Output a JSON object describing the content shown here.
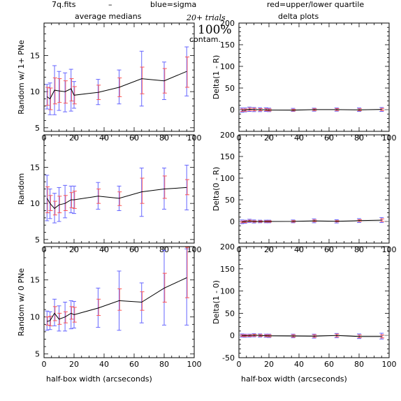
{
  "header": {
    "filename": "7q.fits",
    "dash": "–",
    "blue_label": "blue=sigma",
    "red_label": "red=upper/lower quartile",
    "trials": "20+ trials",
    "percent": "100%",
    "contam": "contam.",
    "blue_color": "#6666ff",
    "red_color": "#ff5555"
  },
  "columns": {
    "left_title": "average medians",
    "right_title": "delta plots"
  },
  "x_axis": {
    "label": "half-box width (arcseconds)",
    "range": [
      0,
      100
    ],
    "ticks": [
      0,
      20,
      40,
      60,
      80,
      100
    ]
  },
  "chart_data": [
    {
      "type": "line",
      "panel": "left-top",
      "ylabel": "Random w/ 1+ PNe",
      "xlim": [
        0,
        100
      ],
      "ylim": [
        4.5,
        19.5
      ],
      "yticks": [
        5,
        10,
        15
      ],
      "x": [
        2,
        4,
        7,
        10,
        14,
        18,
        20,
        36,
        50,
        65,
        80,
        95
      ],
      "y": [
        9.3,
        9.0,
        10.2,
        10.1,
        10.0,
        10.4,
        9.5,
        9.9,
        10.6,
        11.8,
        11.5,
        12.8
      ],
      "sigma_lo": [
        7.6,
        6.8,
        6.8,
        7.4,
        7.2,
        7.3,
        7.7,
        8.2,
        8.3,
        8.0,
        8.9,
        9.4
      ],
      "sigma_hi": [
        11.0,
        11.2,
        13.6,
        12.8,
        12.6,
        13.1,
        11.4,
        11.7,
        13.0,
        15.6,
        14.1,
        16.2
      ],
      "quart_lo": [
        8.1,
        7.5,
        8.3,
        8.5,
        8.4,
        8.7,
        8.3,
        8.9,
        9.3,
        9.7,
        9.8,
        10.6
      ],
      "quart_hi": [
        10.6,
        10.5,
        11.9,
        11.8,
        11.5,
        11.8,
        10.7,
        10.9,
        11.9,
        13.4,
        13.2,
        14.8
      ]
    },
    {
      "type": "line",
      "panel": "left-middle",
      "ylabel": "Random",
      "xlim": [
        0,
        100
      ],
      "ylim": [
        4.5,
        19.5
      ],
      "yticks": [
        5,
        10,
        15
      ],
      "x": [
        2,
        4,
        7,
        10,
        14,
        18,
        20,
        36,
        50,
        65,
        80,
        95
      ],
      "y": [
        10.7,
        10.0,
        9.3,
        9.8,
        10.0,
        10.5,
        10.5,
        11.0,
        10.7,
        11.6,
        12.0,
        12.2
      ],
      "sigma_lo": [
        7.6,
        7.9,
        7.3,
        7.5,
        8.0,
        8.7,
        8.6,
        9.2,
        9.0,
        8.2,
        9.2,
        9.1
      ],
      "sigma_hi": [
        13.9,
        12.0,
        11.4,
        12.2,
        12.5,
        12.4,
        12.4,
        12.9,
        12.4,
        14.9,
        14.9,
        15.3
      ],
      "quart_lo": [
        8.7,
        9.0,
        8.4,
        8.7,
        9.0,
        9.4,
        9.3,
        10.0,
        9.7,
        10.0,
        10.7,
        11.2
      ],
      "quart_hi": [
        12.3,
        11.1,
        10.3,
        11.0,
        11.1,
        11.5,
        11.7,
        12.0,
        11.6,
        13.5,
        13.8,
        13.3
      ]
    },
    {
      "type": "line",
      "panel": "left-bottom",
      "ylabel": "Random w/ 0 PNe",
      "xlim": [
        0,
        100
      ],
      "ylim": [
        4.5,
        19.5
      ],
      "yticks": [
        5,
        10,
        15
      ],
      "x": [
        2,
        4,
        7,
        10,
        14,
        18,
        20,
        36,
        50,
        65,
        80,
        95
      ],
      "y": [
        9.4,
        9.5,
        10.5,
        9.7,
        10.0,
        10.5,
        10.3,
        11.2,
        12.2,
        12.0,
        13.9,
        15.3
      ],
      "sigma_lo": [
        8.2,
        8.3,
        8.8,
        8.1,
        8.1,
        8.4,
        8.5,
        8.6,
        8.2,
        9.2,
        8.9,
        8.9
      ],
      "sigma_hi": [
        10.8,
        10.7,
        12.4,
        11.5,
        12.0,
        12.2,
        12.1,
        13.9,
        16.2,
        14.6,
        19.0,
        19.2
      ],
      "quart_lo": [
        8.9,
        8.8,
        9.5,
        9.0,
        9.2,
        9.7,
        9.3,
        10.2,
        10.9,
        10.9,
        12.0,
        12.6
      ],
      "quart_hi": [
        10.0,
        10.1,
        11.4,
        10.5,
        10.7,
        11.4,
        11.3,
        12.4,
        13.8,
        13.4,
        15.9,
        19.4
      ]
    },
    {
      "type": "line",
      "panel": "right-top",
      "ylabel": "Delta(1 - R)",
      "xlim": [
        0,
        100
      ],
      "ylim": [
        -50,
        200
      ],
      "yticks": [
        0,
        50,
        100,
        150,
        200
      ],
      "x": [
        2,
        4,
        7,
        10,
        14,
        18,
        20,
        36,
        50,
        65,
        80,
        95
      ],
      "y": [
        -1.4,
        -1.0,
        0.9,
        0.3,
        0,
        -0.1,
        -1.0,
        -1.1,
        0.1,
        0.2,
        -0.5,
        0.6
      ],
      "sigma_lo": [
        -6,
        -5,
        -4,
        -4.5,
        -4.5,
        -4,
        -4.5,
        -4,
        -3.5,
        -3.5,
        -4,
        -4
      ],
      "sigma_hi": [
        4,
        4,
        6,
        5,
        4.5,
        4.5,
        3.5,
        3,
        3.5,
        4,
        4,
        5
      ],
      "quart_lo": [
        -4,
        -3.5,
        -2,
        -2.5,
        -2.5,
        -2.5,
        -3,
        -3,
        -2,
        -2,
        -2.5,
        -2
      ],
      "quart_hi": [
        1.5,
        1.5,
        3.5,
        3,
        2.5,
        2.5,
        1.5,
        1,
        2,
        2.5,
        2,
        3
      ]
    },
    {
      "type": "line",
      "panel": "right-middle",
      "ylabel": "Delta(0 - R)",
      "xlim": [
        0,
        100
      ],
      "ylim": [
        -50,
        200
      ],
      "yticks": [
        0,
        50,
        100,
        150,
        200
      ],
      "x": [
        2,
        4,
        7,
        10,
        14,
        18,
        20,
        36,
        50,
        65,
        80,
        95
      ],
      "y": [
        -1.3,
        -0.5,
        1.2,
        -0.1,
        0,
        0,
        0,
        0.2,
        1.5,
        0.4,
        1.9,
        3.1
      ],
      "sigma_lo": [
        -5,
        -4,
        -2.5,
        -3.5,
        -3,
        -3,
        -3,
        -3,
        -3,
        -3.5,
        -2.5,
        -2.5
      ],
      "sigma_hi": [
        3.5,
        3,
        5,
        3.5,
        3,
        3,
        3,
        3.5,
        6,
        4,
        6.5,
        9
      ],
      "quart_lo": [
        -3,
        -2.5,
        -0.5,
        -1.5,
        -1.5,
        -1.5,
        -1.5,
        -1.5,
        -0.5,
        -1,
        0,
        0
      ],
      "quart_hi": [
        0.5,
        1.5,
        3,
        1.5,
        1.5,
        1.5,
        1.5,
        2,
        3.5,
        2,
        4,
        6
      ]
    },
    {
      "type": "line",
      "panel": "right-bottom",
      "ylabel": "Delta(1 - 0)",
      "xlim": [
        0,
        100
      ],
      "ylim": [
        -50,
        200
      ],
      "yticks": [
        -50,
        0,
        50,
        100,
        150,
        200
      ],
      "x": [
        2,
        4,
        7,
        10,
        14,
        18,
        20,
        36,
        50,
        65,
        80,
        95
      ],
      "y": [
        -0.1,
        -0.5,
        -0.3,
        0.4,
        0,
        -0.6,
        -1.0,
        -1.3,
        -1.6,
        -0.2,
        -2.4,
        -2.5
      ],
      "sigma_lo": [
        -3.5,
        -4,
        -3.5,
        -3,
        -3.5,
        -4,
        -4.5,
        -5,
        -6,
        -5,
        -7,
        -8
      ],
      "sigma_hi": [
        3.5,
        3,
        3,
        4,
        3.5,
        3,
        3,
        3,
        3,
        4.5,
        3.5,
        5
      ],
      "quart_lo": [
        -2,
        -2.5,
        -2,
        -1.5,
        -2,
        -2.5,
        -3,
        -3.5,
        -4,
        -3,
        -5,
        -5.5
      ],
      "quart_hi": [
        1.5,
        1.5,
        1.5,
        2.5,
        2,
        1.5,
        1.5,
        1.5,
        1.5,
        3,
        1,
        1.5
      ]
    }
  ]
}
